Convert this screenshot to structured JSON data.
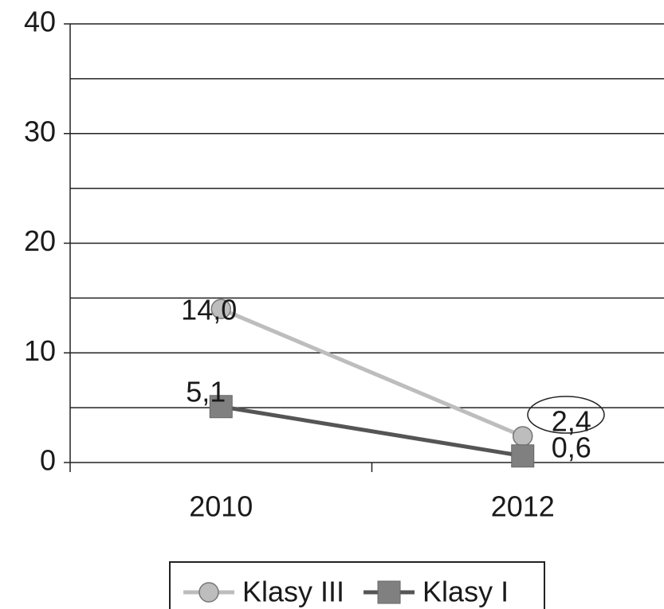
{
  "chart_data": {
    "type": "line",
    "categories": [
      "2010",
      "2012"
    ],
    "series": [
      {
        "name": "Klasy III",
        "color": "#bdbdbd",
        "marker": "circle",
        "values": [
          14.0,
          2.4
        ],
        "value_labels": [
          "14,0",
          "2,4"
        ]
      },
      {
        "name": "Klasy I",
        "color": "#555555",
        "marker_color": "#808080",
        "marker": "square",
        "values": [
          5.1,
          0.6
        ],
        "value_labels": [
          "5,1",
          "0,6"
        ]
      }
    ],
    "ylim": [
      0,
      40
    ],
    "yticks": [
      0,
      10,
      20,
      30,
      40
    ],
    "minor_yticks": [
      5,
      15,
      25,
      35
    ],
    "grid": true,
    "legend": "bottom"
  }
}
